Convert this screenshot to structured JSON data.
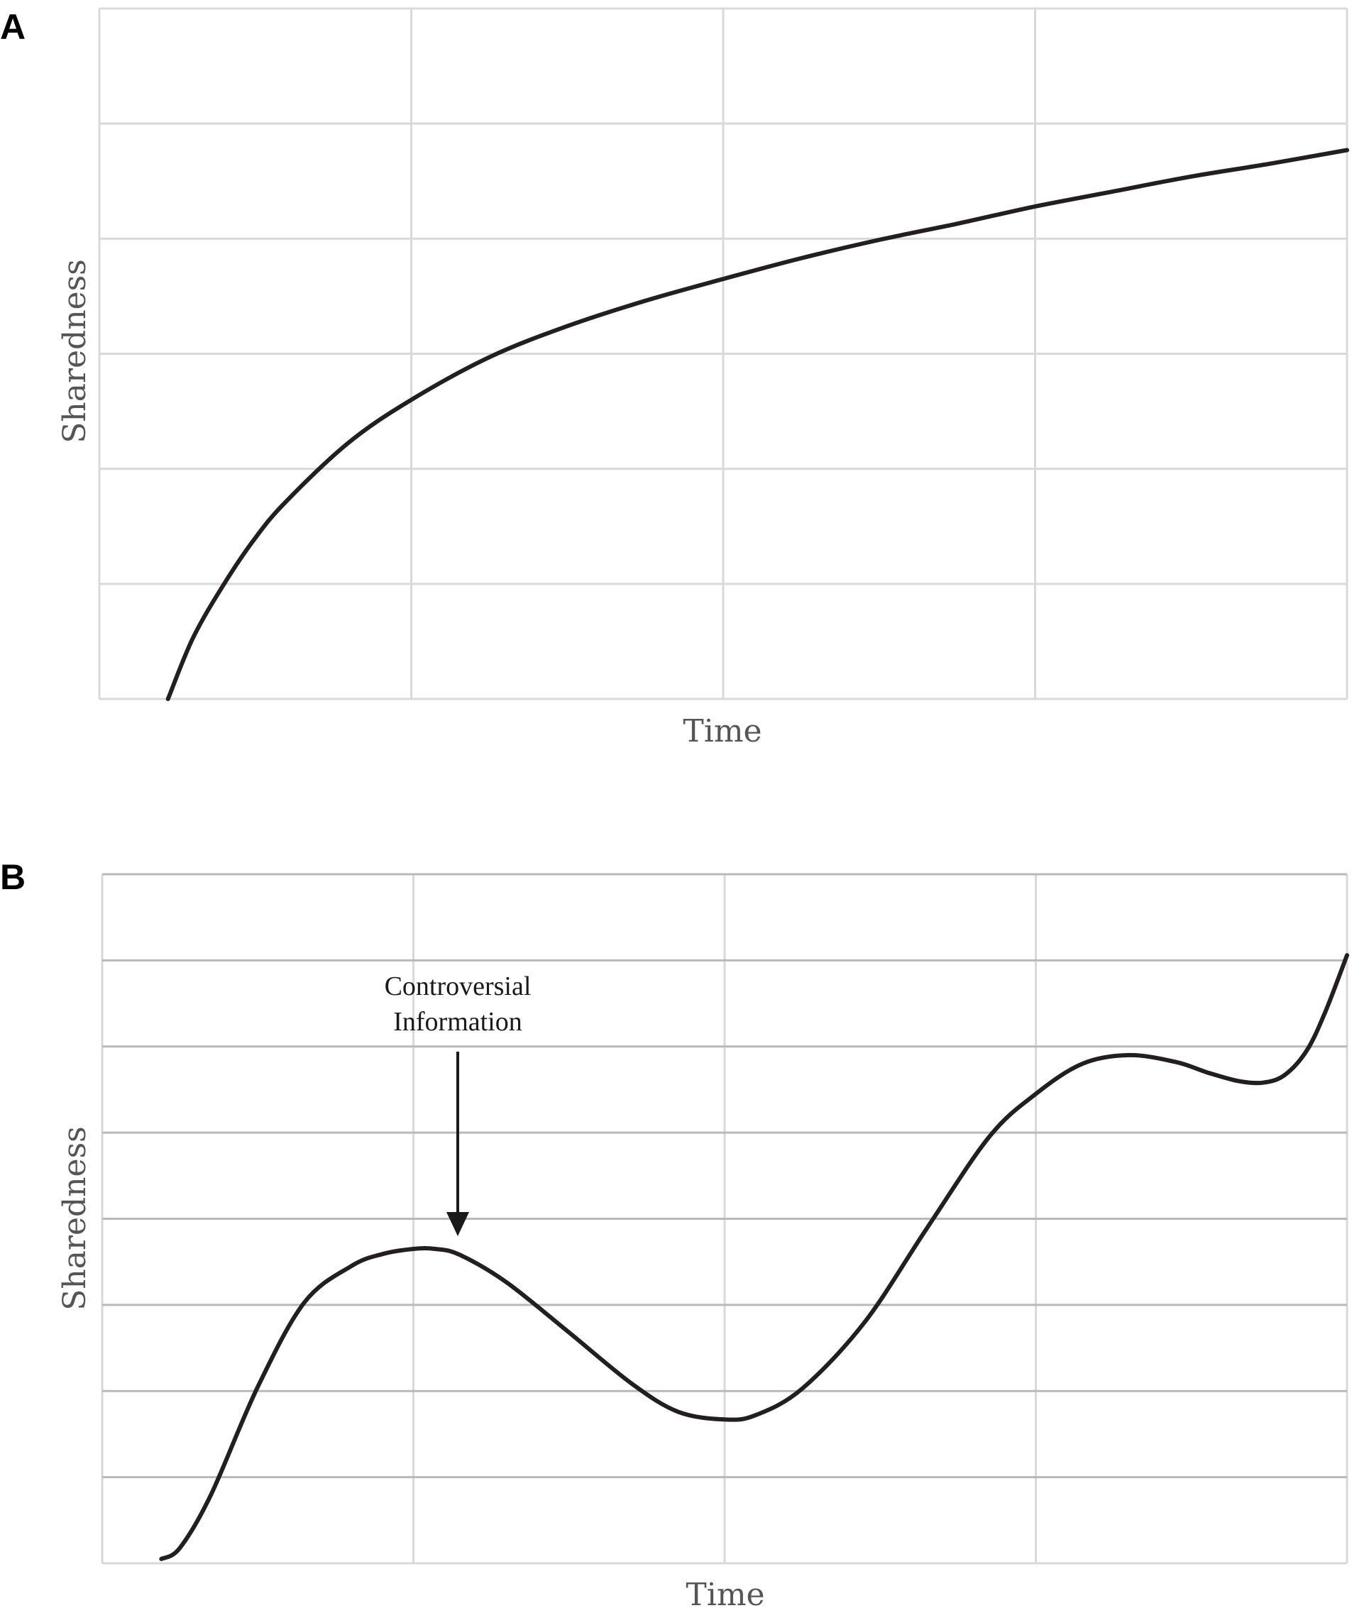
{
  "chart_data": [
    {
      "panel": "A",
      "type": "line",
      "xlabel": "Time",
      "ylabel": "Sharedness",
      "xlim": [
        0,
        4
      ],
      "ylim": [
        0,
        6
      ],
      "grid": true,
      "series": [
        {
          "color": "#231f20",
          "x": [
            0.22,
            0.3,
            0.4,
            0.5,
            0.6,
            0.8,
            1.0,
            1.25,
            1.5,
            1.75,
            2.0,
            2.25,
            2.5,
            2.75,
            3.0,
            3.25,
            3.5,
            3.75,
            4.0
          ],
          "y": [
            0.0,
            0.53,
            1.0,
            1.4,
            1.72,
            2.23,
            2.6,
            2.97,
            3.24,
            3.46,
            3.65,
            3.83,
            3.99,
            4.13,
            4.28,
            4.41,
            4.54,
            4.65,
            4.77
          ]
        }
      ]
    },
    {
      "panel": "B",
      "type": "line",
      "xlabel": "Time",
      "ylabel": "Sharedness",
      "xlim": [
        0,
        4
      ],
      "ylim": [
        0,
        8
      ],
      "grid": true,
      "annotations": [
        {
          "text_lines": [
            "Controversial",
            "Information"
          ],
          "x": 1.14,
          "y": 4.0,
          "arrow": "down"
        }
      ],
      "series": [
        {
          "color": "#231f20",
          "x": [
            0.19,
            0.25,
            0.35,
            0.5,
            0.65,
            0.8,
            0.9,
            1.0,
            1.07,
            1.15,
            1.3,
            1.5,
            1.7,
            1.85,
            2.0,
            2.1,
            2.25,
            2.45,
            2.65,
            2.85,
            3.0,
            3.15,
            3.3,
            3.45,
            3.55,
            3.65,
            3.73,
            3.8,
            3.87,
            3.93,
            4.0
          ],
          "y": [
            0.05,
            0.18,
            0.8,
            2.05,
            3.03,
            3.45,
            3.59,
            3.65,
            3.65,
            3.58,
            3.26,
            2.68,
            2.09,
            1.76,
            1.67,
            1.72,
            2.03,
            2.8,
            3.89,
            4.95,
            5.45,
            5.8,
            5.9,
            5.82,
            5.7,
            5.6,
            5.58,
            5.67,
            5.95,
            6.4,
            7.06
          ]
        }
      ]
    }
  ],
  "figure": {
    "panels": [
      {
        "label": "A",
        "xlabel": "Time",
        "ylabel": "Sharedness"
      },
      {
        "label": "B",
        "xlabel": "Time",
        "ylabel": "Sharedness",
        "annotation_line1": "Controversial",
        "annotation_line2": "Information"
      }
    ]
  }
}
